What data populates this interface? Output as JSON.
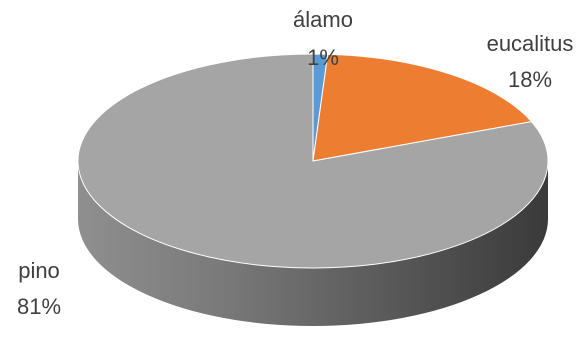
{
  "chart_data": {
    "type": "pie",
    "style": "3d",
    "categories": [
      "álamo",
      "eucalitus",
      "pino"
    ],
    "values": [
      1,
      18,
      81
    ],
    "value_labels": [
      "1%",
      "18%",
      "81%"
    ],
    "colors": [
      "#5B9BD5",
      "#ED7D31",
      "#A5A5A5"
    ],
    "title": "",
    "legend": "none"
  }
}
